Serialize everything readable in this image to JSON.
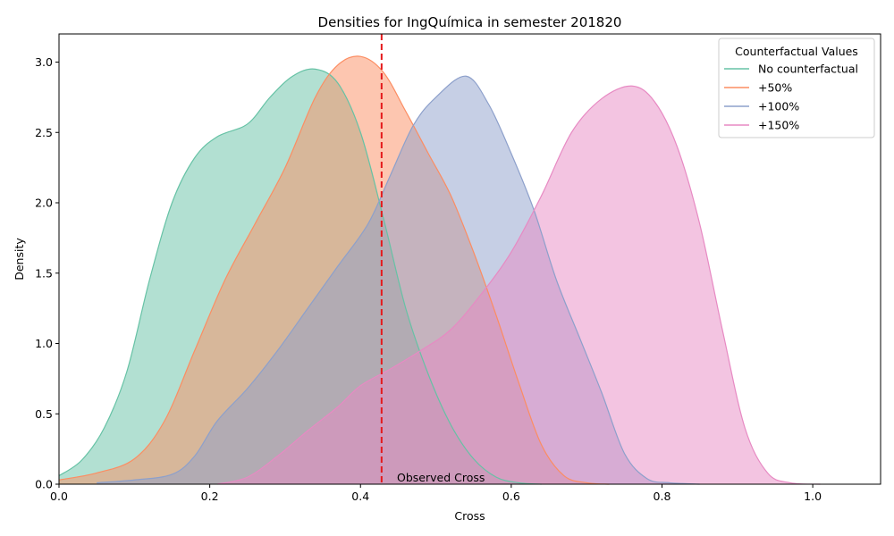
{
  "chart_data": {
    "type": "area",
    "title": "Densities for IngQuímica in semester 201820",
    "xlabel": "Cross",
    "ylabel": "Density",
    "xlim": [
      0.0,
      1.09
    ],
    "ylim": [
      0.0,
      3.2
    ],
    "x_ticks": [
      "0.0",
      "0.2",
      "0.4",
      "0.6",
      "0.8",
      "1.0"
    ],
    "y_ticks": [
      "0.0",
      "0.5",
      "1.0",
      "1.5",
      "2.0",
      "2.5",
      "3.0"
    ],
    "grid": false,
    "legend": {
      "title": "Counterfactual Values",
      "placement": "top-right"
    },
    "reference_line": {
      "x": 0.428,
      "color": "#e41a1c",
      "label": "Observed Cross"
    },
    "series": [
      {
        "name": "No counterfactual",
        "color": "#66c2a5",
        "fill": "#66c2a5",
        "points": [
          [
            0.0,
            0.06
          ],
          [
            0.03,
            0.17
          ],
          [
            0.06,
            0.4
          ],
          [
            0.09,
            0.8
          ],
          [
            0.12,
            1.45
          ],
          [
            0.15,
            2.0
          ],
          [
            0.18,
            2.32
          ],
          [
            0.21,
            2.47
          ],
          [
            0.25,
            2.56
          ],
          [
            0.28,
            2.75
          ],
          [
            0.31,
            2.9
          ],
          [
            0.34,
            2.95
          ],
          [
            0.37,
            2.85
          ],
          [
            0.4,
            2.5
          ],
          [
            0.43,
            1.9
          ],
          [
            0.46,
            1.25
          ],
          [
            0.49,
            0.78
          ],
          [
            0.52,
            0.42
          ],
          [
            0.55,
            0.18
          ],
          [
            0.58,
            0.05
          ],
          [
            0.61,
            0.01
          ],
          [
            0.64,
            0.0
          ]
        ]
      },
      {
        "name": "+50%",
        "color": "#fc8d62",
        "fill": "#fc8d62",
        "points": [
          [
            0.0,
            0.03
          ],
          [
            0.05,
            0.08
          ],
          [
            0.1,
            0.18
          ],
          [
            0.14,
            0.45
          ],
          [
            0.18,
            0.95
          ],
          [
            0.22,
            1.45
          ],
          [
            0.26,
            1.85
          ],
          [
            0.3,
            2.25
          ],
          [
            0.34,
            2.75
          ],
          [
            0.37,
            2.98
          ],
          [
            0.4,
            3.04
          ],
          [
            0.43,
            2.93
          ],
          [
            0.46,
            2.65
          ],
          [
            0.49,
            2.35
          ],
          [
            0.52,
            2.05
          ],
          [
            0.55,
            1.65
          ],
          [
            0.58,
            1.2
          ],
          [
            0.61,
            0.72
          ],
          [
            0.64,
            0.28
          ],
          [
            0.67,
            0.06
          ],
          [
            0.7,
            0.01
          ],
          [
            0.73,
            0.0
          ]
        ]
      },
      {
        "name": "+100%",
        "color": "#8da0cb",
        "fill": "#8da0cb",
        "points": [
          [
            0.05,
            0.01
          ],
          [
            0.1,
            0.03
          ],
          [
            0.15,
            0.07
          ],
          [
            0.18,
            0.2
          ],
          [
            0.21,
            0.45
          ],
          [
            0.25,
            0.68
          ],
          [
            0.29,
            0.95
          ],
          [
            0.33,
            1.25
          ],
          [
            0.37,
            1.55
          ],
          [
            0.41,
            1.85
          ],
          [
            0.44,
            2.2
          ],
          [
            0.47,
            2.55
          ],
          [
            0.5,
            2.75
          ],
          [
            0.54,
            2.9
          ],
          [
            0.57,
            2.7
          ],
          [
            0.6,
            2.35
          ],
          [
            0.63,
            1.95
          ],
          [
            0.66,
            1.45
          ],
          [
            0.69,
            1.05
          ],
          [
            0.72,
            0.65
          ],
          [
            0.75,
            0.22
          ],
          [
            0.78,
            0.04
          ],
          [
            0.81,
            0.01
          ],
          [
            0.85,
            0.0
          ]
        ]
      },
      {
        "name": "+150%",
        "color": "#e78ac3",
        "fill": "#e78ac3",
        "points": [
          [
            0.21,
            0.0
          ],
          [
            0.25,
            0.05
          ],
          [
            0.29,
            0.2
          ],
          [
            0.33,
            0.38
          ],
          [
            0.37,
            0.55
          ],
          [
            0.4,
            0.7
          ],
          [
            0.44,
            0.82
          ],
          [
            0.48,
            0.95
          ],
          [
            0.52,
            1.1
          ],
          [
            0.56,
            1.35
          ],
          [
            0.6,
            1.65
          ],
          [
            0.64,
            2.05
          ],
          [
            0.68,
            2.5
          ],
          [
            0.72,
            2.74
          ],
          [
            0.76,
            2.83
          ],
          [
            0.79,
            2.72
          ],
          [
            0.82,
            2.4
          ],
          [
            0.85,
            1.85
          ],
          [
            0.88,
            1.1
          ],
          [
            0.91,
            0.4
          ],
          [
            0.94,
            0.08
          ],
          [
            0.97,
            0.01
          ],
          [
            1.01,
            0.0
          ]
        ]
      }
    ]
  }
}
